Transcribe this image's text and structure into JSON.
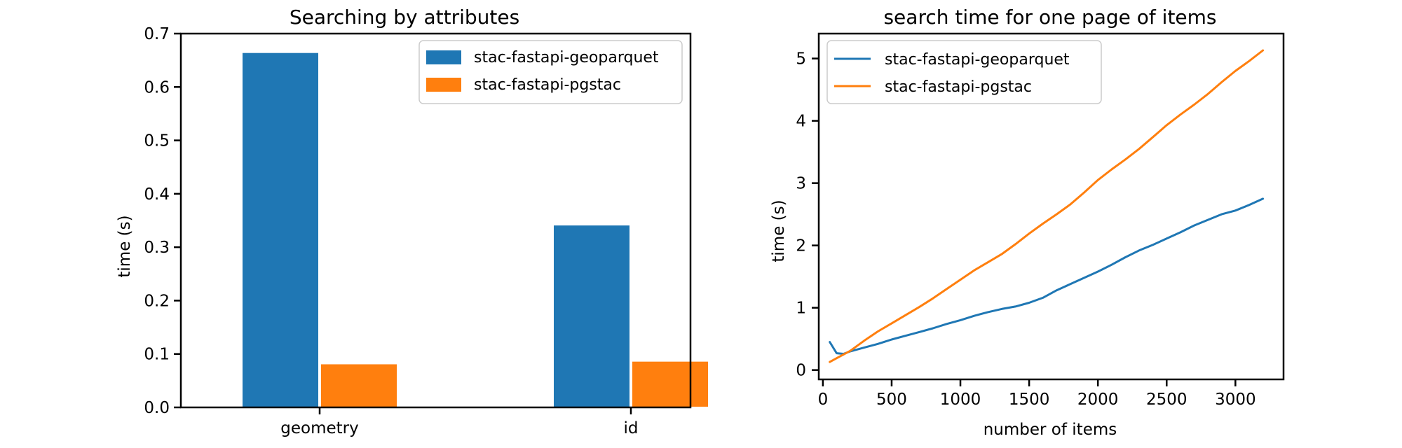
{
  "chart_data": [
    {
      "type": "bar",
      "title": "Searching by attributes",
      "xlabel": "",
      "ylabel": "time (s)",
      "categories": [
        "geometry",
        "id"
      ],
      "ylim": [
        0,
        0.7
      ],
      "yticks": [
        "0.0",
        "0.1",
        "0.2",
        "0.3",
        "0.4",
        "0.5",
        "0.6",
        "0.7"
      ],
      "series": [
        {
          "name": "stac-fastapi-geoparquet",
          "color": "#1f77b4",
          "values": [
            0.665,
            0.342
          ]
        },
        {
          "name": "stac-fastapi-pgstac",
          "color": "#ff7f0e",
          "values": [
            0.082,
            0.087
          ]
        }
      ],
      "legend": "top-right",
      "grid": false
    },
    {
      "type": "line",
      "title": "search time for one page of items",
      "xlabel": "number of items",
      "ylabel": "time (s)",
      "xlim": [
        -30,
        3350
      ],
      "ylim": [
        -0.15,
        5.4
      ],
      "xticks": [
        "0",
        "500",
        "1000",
        "1500",
        "2000",
        "2500",
        "3000"
      ],
      "yticks": [
        "0",
        "1",
        "2",
        "3",
        "4",
        "5"
      ],
      "series": [
        {
          "name": "stac-fastapi-geoparquet",
          "color": "#1f77b4",
          "x": [
            50,
            100,
            150,
            200,
            300,
            400,
            500,
            600,
            700,
            800,
            900,
            1000,
            1100,
            1200,
            1300,
            1400,
            1500,
            1600,
            1700,
            1800,
            1900,
            2000,
            2100,
            2200,
            2300,
            2400,
            2500,
            2600,
            2700,
            2800,
            2900,
            3000,
            3100,
            3200
          ],
          "y": [
            0.45,
            0.27,
            0.26,
            0.3,
            0.36,
            0.42,
            0.49,
            0.55,
            0.61,
            0.67,
            0.74,
            0.8,
            0.87,
            0.93,
            0.98,
            1.02,
            1.08,
            1.16,
            1.28,
            1.38,
            1.48,
            1.58,
            1.69,
            1.81,
            1.92,
            2.01,
            2.11,
            2.21,
            2.32,
            2.41,
            2.5,
            2.56,
            2.65,
            2.75
          ]
        },
        {
          "name": "stac-fastapi-pgstac",
          "color": "#ff7f0e",
          "x": [
            50,
            100,
            150,
            200,
            300,
            400,
            500,
            600,
            700,
            800,
            900,
            1000,
            1100,
            1200,
            1300,
            1400,
            1500,
            1600,
            1700,
            1800,
            1900,
            2000,
            2100,
            2200,
            2300,
            2400,
            2500,
            2600,
            2700,
            2800,
            2900,
            3000,
            3100,
            3200
          ],
          "y": [
            0.13,
            0.19,
            0.25,
            0.31,
            0.47,
            0.62,
            0.75,
            0.88,
            1.01,
            1.15,
            1.3,
            1.45,
            1.6,
            1.73,
            1.86,
            2.02,
            2.19,
            2.35,
            2.5,
            2.66,
            2.85,
            3.05,
            3.22,
            3.38,
            3.55,
            3.74,
            3.93,
            4.1,
            4.26,
            4.43,
            4.62,
            4.8,
            4.96,
            5.13
          ]
        }
      ],
      "legend": "top-left",
      "grid": false
    }
  ]
}
